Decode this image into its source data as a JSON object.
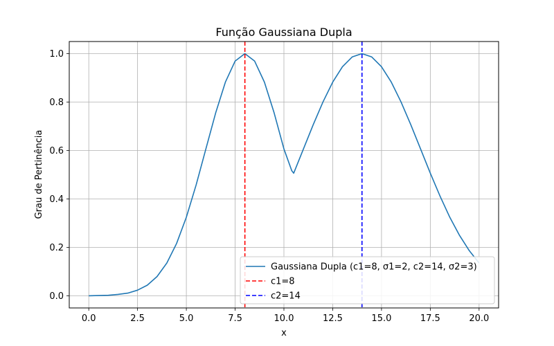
{
  "chart_data": {
    "type": "line",
    "title": "Função Gaussiana Dupla",
    "xlabel": "x",
    "ylabel": "Grau de Pertinência",
    "xlim": [
      -1,
      21
    ],
    "ylim": [
      -0.05,
      1.05
    ],
    "xticks": [
      "0.0",
      "2.5",
      "5.0",
      "7.5",
      "10.0",
      "12.5",
      "15.0",
      "17.5",
      "20.0"
    ],
    "xtick_values": [
      0,
      2.5,
      5,
      7.5,
      10,
      12.5,
      15,
      17.5,
      20
    ],
    "yticks": [
      "0.0",
      "0.2",
      "0.4",
      "0.6",
      "0.8",
      "1.0"
    ],
    "ytick_values": [
      0,
      0.2,
      0.4,
      0.6,
      0.8,
      1.0
    ],
    "grid": true,
    "legend_position": "lower right",
    "series": [
      {
        "name": "Gaussiana Dupla (c1=8, σ1=2, c2=14, σ2=3)",
        "color": "#1f77b4",
        "style": "solid",
        "x": [
          0,
          0.5,
          1,
          1.5,
          2,
          2.5,
          3,
          3.5,
          4,
          4.5,
          5,
          5.5,
          6,
          6.5,
          7,
          7.5,
          8,
          8.5,
          9,
          9.5,
          10,
          10.4,
          10.5,
          11,
          11.5,
          12,
          12.5,
          13,
          13.5,
          14,
          14.5,
          15,
          15.5,
          16,
          16.5,
          17,
          17.5,
          18,
          18.5,
          19,
          19.5,
          20
        ],
        "y": [
          0.0003,
          0.001,
          0.0022,
          0.0059,
          0.0111,
          0.0235,
          0.0439,
          0.0796,
          0.1353,
          0.2163,
          0.3247,
          0.4578,
          0.6065,
          0.7548,
          0.8825,
          0.9692,
          1.0,
          0.9692,
          0.8825,
          0.7548,
          0.6065,
          0.5169,
          0.5063,
          0.6065,
          0.7066,
          0.8007,
          0.8825,
          0.946,
          0.9862,
          1.0,
          0.9862,
          0.946,
          0.8825,
          0.8007,
          0.7066,
          0.6065,
          0.5063,
          0.4111,
          0.3247,
          0.2494,
          0.1863,
          0.1353
        ]
      },
      {
        "name": "c1=8",
        "color": "#ff0000",
        "style": "dashed",
        "vline": 8
      },
      {
        "name": "c2=14",
        "color": "#0000ff",
        "style": "dashed",
        "vline": 14
      }
    ]
  }
}
